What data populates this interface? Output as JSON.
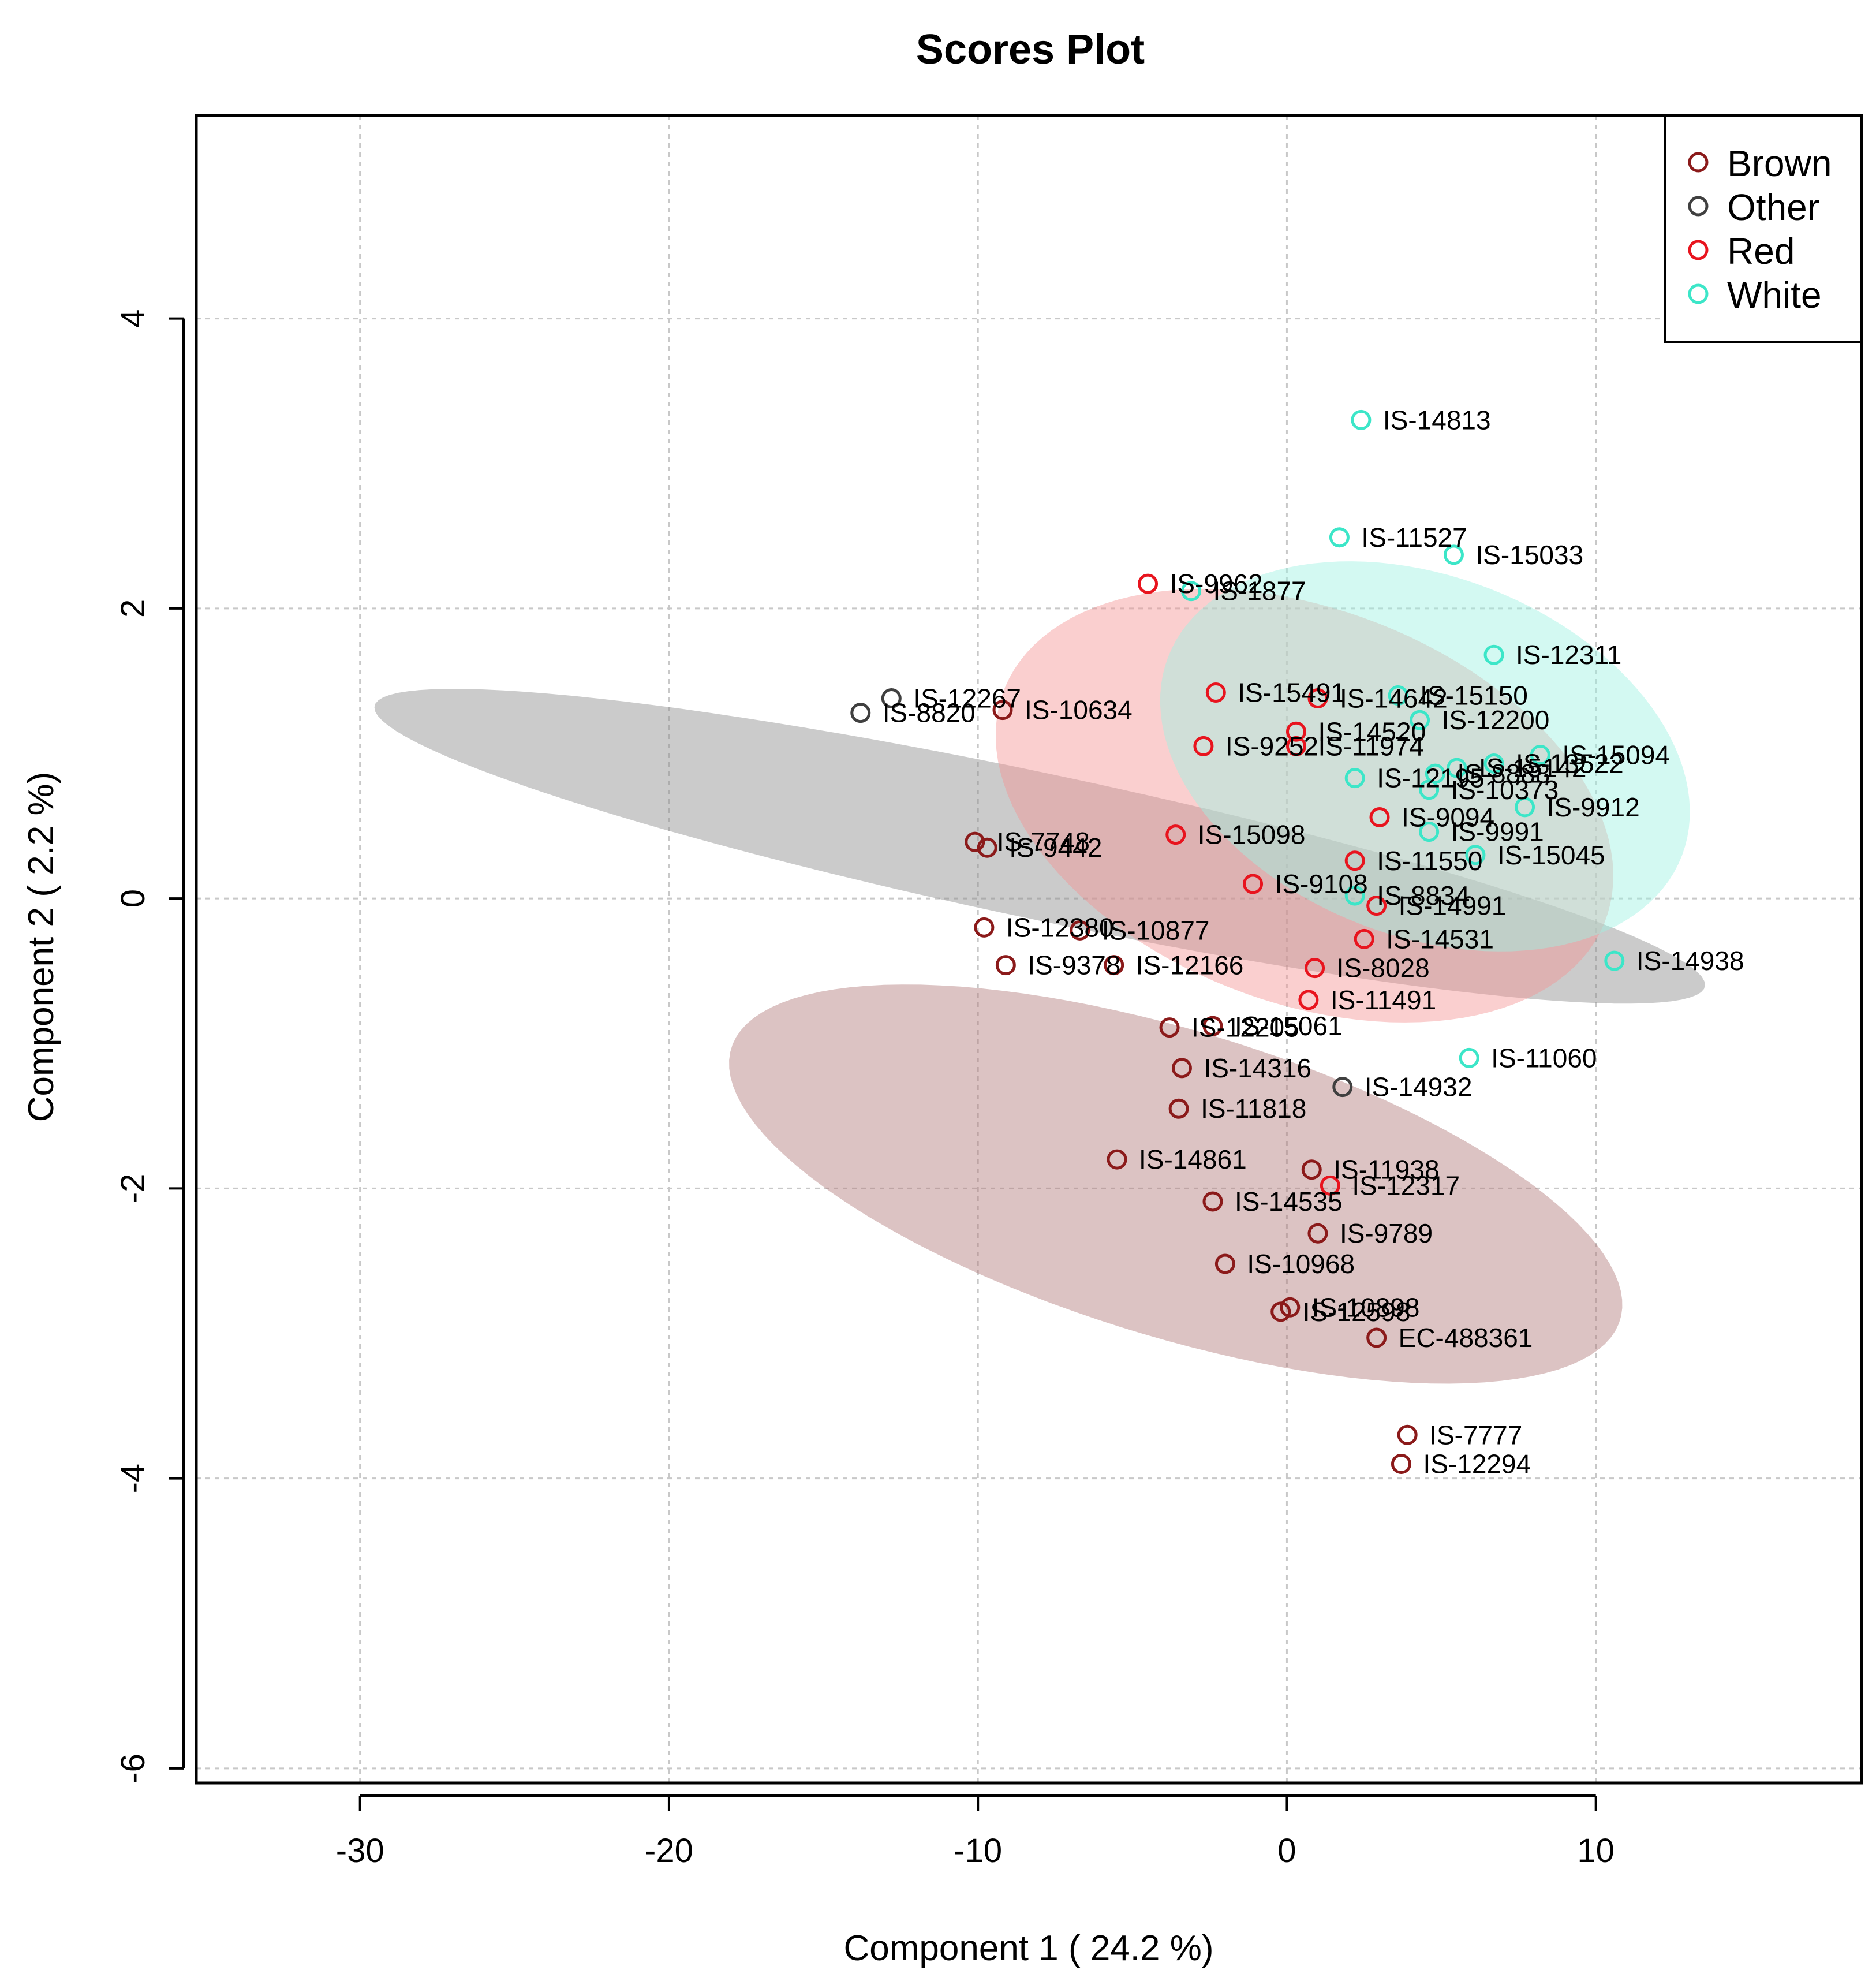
{
  "chart_data": {
    "type": "scatter",
    "title": "Scores Plot",
    "xlabel": "Component 1 ( 24.2 %)",
    "ylabel": "Component 2 ( 2.2 %)",
    "xlim": [
      -35.3,
      18.6
    ],
    "ylim": [
      -6.1,
      5.4
    ],
    "xticks": [
      -30,
      -20,
      -10,
      0,
      10
    ],
    "yticks": [
      -6,
      -4,
      -2,
      0,
      2,
      4
    ],
    "grid": true,
    "legend_position": "top-right",
    "groups": [
      {
        "name": "Brown",
        "color": "#8B1A1A",
        "fill": "#B27A7A",
        "ellipse": {
          "cx": -3.6,
          "cy": -1.97,
          "rx": 15.0,
          "ry": 1.12,
          "angle_deg": -15.5
        }
      },
      {
        "name": "Other",
        "color": "#404040",
        "fill": "#8C8C8C",
        "ellipse": {
          "cx": -8.0,
          "cy": 0.36,
          "rx": 22.0,
          "ry": 0.52,
          "angle_deg": -11.8
        }
      },
      {
        "name": "Red",
        "color": "#E8141E",
        "fill": "#F49595",
        "ellipse": {
          "cx": 0.57,
          "cy": 0.64,
          "rx": 10.3,
          "ry": 1.44,
          "angle_deg": -14.1
        }
      },
      {
        "name": "White",
        "color": "#3CE6C8",
        "fill": "#9EF2E2",
        "ellipse": {
          "cx": 4.47,
          "cy": 0.98,
          "rx": 8.8,
          "ry": 1.31,
          "angle_deg": -13.2
        }
      }
    ],
    "points": [
      {
        "label": "IS-14813",
        "group": "White",
        "x": 2.4,
        "y": 3.3
      },
      {
        "label": "IS-11527",
        "group": "White",
        "x": 1.7,
        "y": 2.49
      },
      {
        "label": "IS-15033",
        "group": "White",
        "x": 5.4,
        "y": 2.37
      },
      {
        "label": "IS-1877",
        "group": "White",
        "x": -3.1,
        "y": 2.12
      },
      {
        "label": "IS-12311",
        "group": "White",
        "x": 6.7,
        "y": 1.68
      },
      {
        "label": "IS-15150",
        "group": "White",
        "x": 3.6,
        "y": 1.4
      },
      {
        "label": "IS-12200",
        "group": "White",
        "x": 4.3,
        "y": 1.23
      },
      {
        "label": "IS-15094",
        "group": "White",
        "x": 8.2,
        "y": 0.99
      },
      {
        "label": "IS-13522",
        "group": "White",
        "x": 6.7,
        "y": 0.93
      },
      {
        "label": "IS-15142",
        "group": "White",
        "x": 5.5,
        "y": 0.9
      },
      {
        "label": "IS-8888",
        "group": "White",
        "x": 4.8,
        "y": 0.86
      },
      {
        "label": "IS-12195",
        "group": "White",
        "x": 2.2,
        "y": 0.83
      },
      {
        "label": "IS-10373",
        "group": "White",
        "x": 4.6,
        "y": 0.75
      },
      {
        "label": "IS-9912",
        "group": "White",
        "x": 7.7,
        "y": 0.63
      },
      {
        "label": "IS-9991",
        "group": "White",
        "x": 4.6,
        "y": 0.46
      },
      {
        "label": "IS-15045",
        "group": "White",
        "x": 6.1,
        "y": 0.3
      },
      {
        "label": "IS-8834",
        "group": "White",
        "x": 2.2,
        "y": 0.02
      },
      {
        "label": "IS-14938",
        "group": "White",
        "x": 10.6,
        "y": -0.43
      },
      {
        "label": "IS-11060",
        "group": "White",
        "x": 5.9,
        "y": -1.1
      },
      {
        "label": "IS-9962",
        "group": "Red",
        "x": -4.5,
        "y": 2.17
      },
      {
        "label": "IS-15491",
        "group": "Red",
        "x": -2.3,
        "y": 1.42
      },
      {
        "label": "IS-14642",
        "group": "Red",
        "x": 1.0,
        "y": 1.38
      },
      {
        "label": "IS-14520",
        "group": "Red",
        "x": 0.3,
        "y": 1.15
      },
      {
        "label": "IS-9252",
        "group": "Red",
        "x": -2.7,
        "y": 1.05
      },
      {
        "label": "IS-11974",
        "group": "Red",
        "x": 0.3,
        "y": 1.05
      },
      {
        "label": "IS-9094",
        "group": "Red",
        "x": 3.0,
        "y": 0.56
      },
      {
        "label": "IS-15098",
        "group": "Red",
        "x": -3.6,
        "y": 0.44
      },
      {
        "label": "IS-11550",
        "group": "Red",
        "x": 2.2,
        "y": 0.26
      },
      {
        "label": "IS-9108",
        "group": "Red",
        "x": -1.1,
        "y": 0.1
      },
      {
        "label": "IS-14991",
        "group": "Red",
        "x": 2.9,
        "y": -0.05
      },
      {
        "label": "IS-14531",
        "group": "Red",
        "x": 2.5,
        "y": -0.28
      },
      {
        "label": "IS-8028",
        "group": "Red",
        "x": 0.9,
        "y": -0.48
      },
      {
        "label": "IS-11491",
        "group": "Red",
        "x": 0.7,
        "y": -0.7
      },
      {
        "label": "IS-12317",
        "group": "Red",
        "x": 1.4,
        "y": -1.98
      },
      {
        "label": "IS-12267",
        "group": "Other",
        "x": -12.8,
        "y": 1.38
      },
      {
        "label": "IS-8820",
        "group": "Other",
        "x": -13.8,
        "y": 1.28
      },
      {
        "label": "IS-14932",
        "group": "Other",
        "x": 1.8,
        "y": -1.3
      },
      {
        "label": "IS-10634",
        "group": "Brown",
        "x": -9.2,
        "y": 1.3
      },
      {
        "label": "IS-7748",
        "group": "Brown",
        "x": -10.1,
        "y": 0.39
      },
      {
        "label": "IS-9442",
        "group": "Brown",
        "x": -9.7,
        "y": 0.35
      },
      {
        "label": "IS-12380",
        "group": "Brown",
        "x": -9.8,
        "y": -0.2
      },
      {
        "label": "IS-10877",
        "group": "Brown",
        "x": -6.7,
        "y": -0.22
      },
      {
        "label": "IS-9378",
        "group": "Brown",
        "x": -9.1,
        "y": -0.46
      },
      {
        "label": "IS-12166",
        "group": "Brown",
        "x": -5.6,
        "y": -0.46
      },
      {
        "label": "IS-12205",
        "group": "Brown",
        "x": -3.8,
        "y": -0.89
      },
      {
        "label": "IS-15061",
        "group": "Brown",
        "x": -2.4,
        "y": -0.88
      },
      {
        "label": "IS-14316",
        "group": "Brown",
        "x": -3.4,
        "y": -1.17
      },
      {
        "label": "IS-11818",
        "group": "Brown",
        "x": -3.5,
        "y": -1.45
      },
      {
        "label": "IS-14861",
        "group": "Brown",
        "x": -5.5,
        "y": -1.8
      },
      {
        "label": "IS-11938",
        "group": "Brown",
        "x": 0.8,
        "y": -1.87
      },
      {
        "label": "IS-14535",
        "group": "Brown",
        "x": -2.4,
        "y": -2.09
      },
      {
        "label": "IS-9789",
        "group": "Brown",
        "x": 1.0,
        "y": -2.31
      },
      {
        "label": "IS-10968",
        "group": "Brown",
        "x": -2.0,
        "y": -2.52
      },
      {
        "label": "IS-10898",
        "group": "Brown",
        "x": 0.1,
        "y": -2.82
      },
      {
        "label": "IS-12598",
        "group": "Brown",
        "x": -0.2,
        "y": -2.85
      },
      {
        "label": "EC-488361",
        "group": "Brown",
        "x": 2.9,
        "y": -3.03
      },
      {
        "label": "IS-7777",
        "group": "Brown",
        "x": 3.9,
        "y": -3.7
      },
      {
        "label": "IS-12294",
        "group": "Brown",
        "x": 3.7,
        "y": -3.9
      }
    ]
  }
}
